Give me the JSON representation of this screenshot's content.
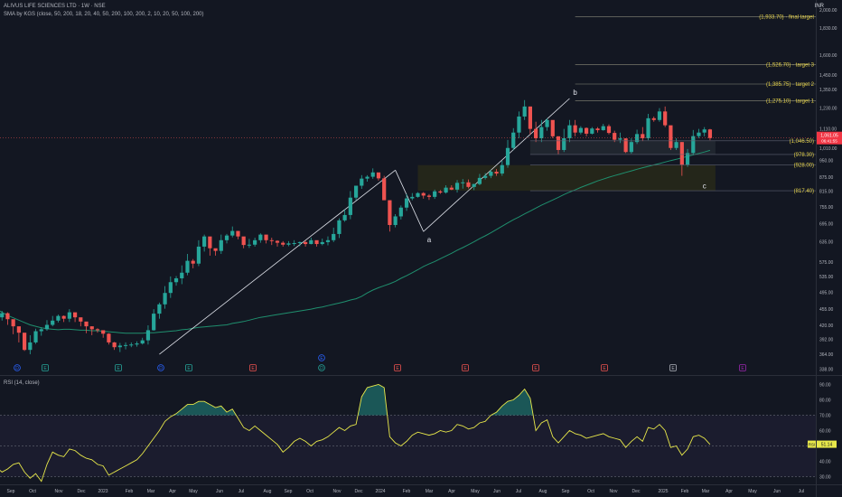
{
  "header": {
    "title": "ALIVUS LIFE SCIENCES LTD · 1W · NSE",
    "indicator": "SMA by KGS (close, 50, 200, 18, 20, 40, 50, 200, 100, 200, 2, 10, 20, 50, 100, 200)",
    "currency": "INR",
    "rsi_label": "RSI (14, close)"
  },
  "colors": {
    "background": "#131722",
    "up": "#26a69a",
    "down": "#ef5350",
    "sma": "#1f8f6e",
    "rsi": "#e8e84a",
    "target_text": "#e6d34a",
    "zone_fill": "#3a3a12",
    "current_price_bg": "#f23645",
    "rsi_badge_bg": "#e8e84a"
  },
  "chart_data": [
    {
      "type": "candlestick",
      "scale": "log",
      "ylim": [
        330,
        2100
      ],
      "y_ticks": [
        "2,000.00",
        "1,830.00",
        "1,600.00",
        "1,450.00",
        "1,350.00",
        "1,230.00",
        "1,110.00",
        "1,010.00",
        "950.00",
        "875.00",
        "815.00",
        "755.00",
        "695.00",
        "635.00",
        "575.00",
        "535.00",
        "495.00",
        "455.00",
        "420.00",
        "392.00",
        "364.00",
        "338.00"
      ],
      "x_labels": [
        "Sep",
        "Oct",
        "Nov",
        "Dec",
        "2023",
        "Feb",
        "Mar",
        "Apr",
        "May",
        "Jun",
        "Jul",
        "Aug",
        "Sep",
        "Oct",
        "Nov",
        "Dec",
        "2024",
        "Feb",
        "Mar",
        "Apr",
        "May",
        "Jun",
        "Jul",
        "Aug",
        "Sep",
        "Oct",
        "Nov",
        "Dec",
        "2025",
        "Feb",
        "Mar",
        "Apr",
        "May",
        "Jun",
        "Jul"
      ],
      "current_price": "1,061.05",
      "countdown": "06:41:55",
      "wave_labels": [
        "a",
        "b",
        "c"
      ],
      "levels": [
        {
          "label": "(1,933.70) · final target",
          "value": 1933.7
        },
        {
          "label": "(1,526.70) · target 3",
          "value": 1526.7
        },
        {
          "label": "(1,385.75) · target 2",
          "value": 1385.75
        },
        {
          "label": "(1,275.10) · target 1",
          "value": 1275.1
        },
        {
          "label": "(1,046.50)",
          "value": 1046.5
        },
        {
          "label": "(978.30)",
          "value": 978.3
        },
        {
          "label": "(928.00)",
          "value": 928.0
        },
        {
          "label": "(817.40)",
          "value": 817.4
        }
      ],
      "events": [
        "D",
        "E",
        "E",
        "D",
        "E",
        "E",
        "D",
        "E",
        "E",
        "E",
        "E",
        "E",
        "E",
        "E"
      ],
      "candles": {
        "close": [
          437,
          446,
          433,
          418,
          405,
          372,
          386,
          408,
          412,
          421,
          430,
          440,
          434,
          448,
          437,
          428,
          418,
          412,
          410,
          403,
          386,
          377,
          380,
          381,
          382,
          384,
          390,
          410,
          445,
          466,
          493,
          520,
          530,
          545,
          578,
          570,
          620,
          652,
          615,
          607,
          640,
          655,
          670,
          652,
          625,
          626,
          640,
          658,
          640,
          638,
          632,
          626,
          630,
          631,
          634,
          628,
          640,
          628,
          634,
          640,
          660,
          706,
          725,
          790,
          838,
          868,
          876,
          895,
          869,
          780,
          690,
          720,
          752,
          787,
          793,
          808,
          798,
          793,
          815,
          810,
          830,
          822,
          850,
          852,
          833,
          845,
          871,
          880,
          898,
          890,
          928,
          1010,
          1090,
          1180,
          1240,
          1110,
          1060,
          1120,
          1160,
          1070,
          1000,
          1060,
          1130,
          1090,
          1115,
          1084,
          1112,
          1103,
          1125,
          1088,
          1052,
          1059,
          990,
          1040,
          1082,
          1060,
          1170,
          1160,
          1210,
          1130,
          1010,
          1040,
          930,
          985,
          1071,
          1090,
          1107,
          1061
        ],
        "high": [
          448,
          451,
          448,
          422,
          411,
          392,
          400,
          413,
          416,
          431,
          440,
          443,
          441,
          455,
          443,
          434,
          422,
          418,
          414,
          409,
          404,
          387,
          385,
          386,
          386,
          388,
          395,
          420,
          455,
          470,
          510,
          535,
          536,
          565,
          598,
          583,
          640,
          658,
          627,
          613,
          658,
          660,
          685,
          670,
          640,
          644,
          648,
          662,
          650,
          648,
          640,
          637,
          637,
          640,
          636,
          640,
          648,
          636,
          645,
          652,
          681,
          713,
          745,
          816,
          838,
          883,
          883,
          913,
          890,
          880,
          780,
          728,
          760,
          804,
          808,
          812,
          812,
          804,
          822,
          820,
          840,
          840,
          862,
          866,
          864,
          846,
          888,
          892,
          907,
          910,
          948,
          1051,
          1114,
          1210,
          1280,
          1240,
          1150,
          1160,
          1170,
          1150,
          1070,
          1110,
          1160,
          1160,
          1125,
          1118,
          1120,
          1120,
          1138,
          1135,
          1100,
          1090,
          1060,
          1060,
          1106,
          1120,
          1196,
          1180,
          1230,
          1240,
          1100,
          1060,
          1040,
          1005,
          1104,
          1110,
          1120,
          1110
        ],
        "low": [
          428,
          430,
          421,
          402,
          386,
          370,
          364,
          383,
          399,
          409,
          418,
          426,
          427,
          427,
          427,
          418,
          404,
          400,
          405,
          395,
          382,
          372,
          368,
          373,
          377,
          378,
          382,
          382,
          409,
          434,
          456,
          481,
          511,
          515,
          538,
          557,
          563,
          605,
          593,
          593,
          598,
          630,
          649,
          643,
          615,
          616,
          620,
          632,
          630,
          625,
          620,
          620,
          621,
          622,
          621,
          620,
          627,
          620,
          624,
          624,
          634,
          647,
          701,
          710,
          780,
          825,
          855,
          867,
          860,
          780,
          668,
          682,
          709,
          740,
          780,
          790,
          786,
          781,
          785,
          805,
          806,
          820,
          810,
          826,
          827,
          820,
          840,
          864,
          870,
          880,
          880,
          916,
          999,
          1060,
          1160,
          1080,
          1040,
          1040,
          1100,
          1060,
          980,
          990,
          1040,
          1070,
          1080,
          1070,
          1080,
          1090,
          1100,
          1080,
          1040,
          1035,
          985,
          982,
          1030,
          1045,
          1050,
          1150,
          1150,
          1120,
          1000,
          1000,
          880,
          920,
          975,
          1060,
          1070,
          1050
        ]
      },
      "sma": [
        455,
        448,
        441,
        436,
        431,
        426,
        421,
        418,
        415,
        413,
        412,
        411,
        412,
        412,
        411,
        410,
        410,
        409,
        409,
        408,
        407,
        406,
        405,
        404,
        404,
        404,
        404,
        405,
        405,
        406,
        407,
        408,
        409,
        411,
        412,
        414,
        416,
        417,
        418,
        419,
        420,
        421,
        424,
        426,
        428,
        431,
        434,
        437,
        439,
        441,
        443,
        445,
        447,
        449,
        451,
        453,
        455,
        458,
        460,
        463,
        466,
        469,
        472,
        476,
        479,
        485,
        493,
        500,
        506,
        511,
        516,
        522,
        530,
        537,
        545,
        553,
        562,
        569,
        576,
        584,
        592,
        600,
        609,
        617,
        626,
        635,
        645,
        654,
        664,
        675,
        686,
        697,
        708,
        718,
        729,
        739,
        750,
        761,
        771,
        781,
        791,
        802,
        812,
        821,
        831,
        840,
        849,
        858,
        866,
        874,
        881,
        888,
        895,
        902,
        909,
        916,
        922,
        929,
        935,
        942,
        949,
        955,
        962,
        969,
        976,
        983,
        990,
        998
      ]
    },
    {
      "type": "line",
      "title": "RSI (14, close)",
      "ylim": [
        25,
        95
      ],
      "y_ticks": [
        "90.00",
        "80.00",
        "70.00",
        "60.00",
        "50.00",
        "40.00",
        "30.00"
      ],
      "current": "51.14",
      "badge": "RSI",
      "overbought": 70,
      "oversold": 30,
      "values": [
        36,
        33,
        35,
        38,
        39,
        33,
        29,
        32,
        27,
        38,
        46,
        44,
        43,
        48,
        47,
        44,
        42,
        41,
        38,
        37,
        31,
        33,
        35,
        37,
        39,
        41,
        45,
        50,
        55,
        60,
        66,
        69,
        71,
        74,
        77,
        77,
        79,
        79,
        77,
        75,
        76,
        72,
        74,
        68,
        62,
        60,
        63,
        60,
        57,
        54,
        51,
        46,
        49,
        53,
        55,
        53,
        50,
        53,
        54,
        56,
        59,
        62,
        60,
        63,
        64,
        82,
        88,
        89,
        90,
        88,
        56,
        52,
        50,
        53,
        57,
        59,
        58,
        57,
        58,
        60,
        59,
        60,
        64,
        63,
        61,
        62,
        65,
        66,
        70,
        72,
        76,
        79,
        80,
        83,
        87,
        81,
        60,
        65,
        67,
        56,
        52,
        56,
        60,
        58,
        57,
        55,
        56,
        57,
        58,
        56,
        55,
        54,
        49,
        53,
        56,
        53,
        62,
        61,
        64,
        60,
        49,
        50,
        44,
        48,
        56,
        57,
        55,
        51
      ]
    }
  ]
}
